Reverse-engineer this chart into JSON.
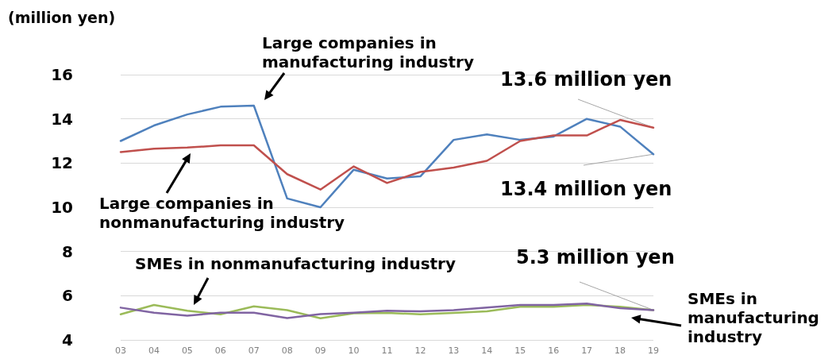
{
  "chart_data": {
    "type": "line",
    "ylabel": "(million yen)",
    "categories": [
      "03",
      "04",
      "05",
      "06",
      "07",
      "08",
      "09",
      "10",
      "11",
      "12",
      "13",
      "14",
      "15",
      "16",
      "17",
      "18",
      "19"
    ],
    "series": [
      {
        "name": "Large companies in manufacturing industry",
        "color": "#4f81bd",
        "values": [
          13.0,
          13.7,
          14.2,
          14.55,
          14.6,
          10.4,
          10.0,
          11.7,
          11.3,
          11.4,
          13.05,
          13.3,
          13.05,
          13.2,
          14.0,
          13.65,
          12.4
        ]
      },
      {
        "name": "Large companies in nonmanufacturing industry",
        "color": "#c0504d",
        "values": [
          12.5,
          12.65,
          12.7,
          12.8,
          12.8,
          11.5,
          10.8,
          11.85,
          11.1,
          11.6,
          11.8,
          12.1,
          13.0,
          13.25,
          13.25,
          13.95,
          13.6
        ]
      },
      {
        "name": "SMEs in nonmanufacturing industry",
        "color": "#9bbb59",
        "values": [
          5.16,
          5.58,
          5.32,
          5.16,
          5.52,
          5.35,
          4.98,
          5.2,
          5.22,
          5.16,
          5.22,
          5.29,
          5.5,
          5.5,
          5.58,
          5.5,
          5.35
        ]
      },
      {
        "name": "SMEs in manufacturing industry",
        "color": "#8064a2",
        "values": [
          5.46,
          5.23,
          5.1,
          5.23,
          5.23,
          4.99,
          5.17,
          5.23,
          5.32,
          5.29,
          5.35,
          5.46,
          5.58,
          5.58,
          5.64,
          5.44,
          5.35
        ]
      }
    ],
    "annotations": [
      {
        "text": "13.6 million yen",
        "x": "19",
        "y": 13.6
      },
      {
        "text": "13.4 million yen",
        "x": "19",
        "y": 12.4
      },
      {
        "text": "5.3 million yen",
        "x": "19",
        "y": 5.35
      }
    ],
    "ylim": [
      4,
      16
    ],
    "yticks": [
      4,
      6,
      8,
      10,
      12,
      14,
      16
    ],
    "grid": "y",
    "marker": "none",
    "line_style": "solid",
    "legend": false
  }
}
